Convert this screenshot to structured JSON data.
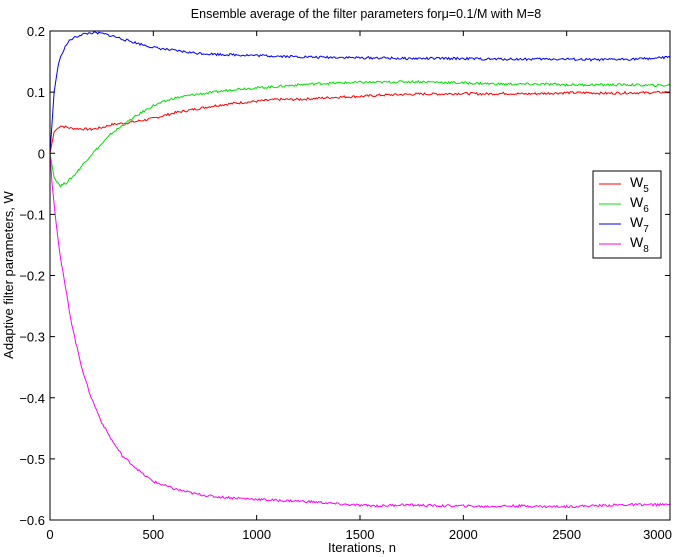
{
  "chart_data": {
    "type": "line",
    "title": "Ensemble average of the filter parameters forμ=0.1/M with M=8",
    "xlabel": "Iterations, n",
    "ylabel": "Adaptive filter parameters, W",
    "xlim": [
      0,
      3000
    ],
    "ylim": [
      -0.6,
      0.2
    ],
    "x_ticks": [
      0,
      500,
      1000,
      1500,
      2000,
      2500,
      3000
    ],
    "y_ticks": [
      0.2,
      0.1,
      0,
      -0.1,
      -0.2,
      -0.3,
      -0.4,
      -0.5,
      -0.6
    ],
    "x_tick_labels": [
      "0",
      "500",
      "1000",
      "1500",
      "2000",
      "2500",
      "3000"
    ],
    "y_tick_labels": [
      "0.2",
      "0.1",
      "0",
      "−0.1",
      "−0.2",
      "−0.3",
      "−0.4",
      "−0.5",
      "−0.6"
    ],
    "grid": false,
    "legend_position": "right",
    "legend_box": true,
    "series": [
      {
        "name": "W5",
        "legend_main": "W",
        "legend_sub": "5",
        "color": "#ff0000",
        "points": [
          [
            0,
            0
          ],
          [
            20,
            0.035
          ],
          [
            50,
            0.045
          ],
          [
            100,
            0.041
          ],
          [
            150,
            0.04
          ],
          [
            200,
            0.039
          ],
          [
            250,
            0.042
          ],
          [
            300,
            0.047
          ],
          [
            400,
            0.051
          ],
          [
            500,
            0.057
          ],
          [
            600,
            0.066
          ],
          [
            700,
            0.072
          ],
          [
            800,
            0.078
          ],
          [
            900,
            0.082
          ],
          [
            1000,
            0.085
          ],
          [
            1100,
            0.088
          ],
          [
            1200,
            0.088
          ],
          [
            1300,
            0.09
          ],
          [
            1400,
            0.092
          ],
          [
            1500,
            0.093
          ],
          [
            1600,
            0.095
          ],
          [
            1700,
            0.096
          ],
          [
            1800,
            0.097
          ],
          [
            1900,
            0.097
          ],
          [
            2000,
            0.098
          ],
          [
            2100,
            0.097
          ],
          [
            2200,
            0.098
          ],
          [
            2300,
            0.097
          ],
          [
            2400,
            0.098
          ],
          [
            2500,
            0.099
          ],
          [
            2600,
            0.099
          ],
          [
            2700,
            0.098
          ],
          [
            2800,
            0.099
          ],
          [
            2900,
            0.099
          ],
          [
            3000,
            0.1
          ]
        ]
      },
      {
        "name": "W6",
        "legend_main": "W",
        "legend_sub": "6",
        "color": "#00e000",
        "points": [
          [
            0,
            0
          ],
          [
            20,
            -0.04
          ],
          [
            50,
            -0.053
          ],
          [
            80,
            -0.048
          ],
          [
            120,
            -0.035
          ],
          [
            160,
            -0.018
          ],
          [
            200,
            -0.002
          ],
          [
            250,
            0.015
          ],
          [
            300,
            0.033
          ],
          [
            350,
            0.045
          ],
          [
            400,
            0.057
          ],
          [
            450,
            0.068
          ],
          [
            500,
            0.078
          ],
          [
            600,
            0.09
          ],
          [
            700,
            0.096
          ],
          [
            800,
            0.1
          ],
          [
            900,
            0.105
          ],
          [
            1000,
            0.107
          ],
          [
            1100,
            0.109
          ],
          [
            1200,
            0.112
          ],
          [
            1300,
            0.114
          ],
          [
            1400,
            0.115
          ],
          [
            1500,
            0.116
          ],
          [
            1600,
            0.116
          ],
          [
            1700,
            0.117
          ],
          [
            1800,
            0.117
          ],
          [
            1900,
            0.116
          ],
          [
            2000,
            0.115
          ],
          [
            2100,
            0.114
          ],
          [
            2200,
            0.113
          ],
          [
            2300,
            0.113
          ],
          [
            2400,
            0.113
          ],
          [
            2500,
            0.112
          ],
          [
            2600,
            0.112
          ],
          [
            2700,
            0.112
          ],
          [
            2800,
            0.112
          ],
          [
            2900,
            0.111
          ],
          [
            3000,
            0.111
          ]
        ]
      },
      {
        "name": "W7",
        "legend_main": "W",
        "legend_sub": "7",
        "color": "#0000ff",
        "points": [
          [
            0,
            0
          ],
          [
            20,
            0.1
          ],
          [
            40,
            0.145
          ],
          [
            60,
            0.165
          ],
          [
            80,
            0.178
          ],
          [
            100,
            0.186
          ],
          [
            150,
            0.194
          ],
          [
            200,
            0.197
          ],
          [
            250,
            0.196
          ],
          [
            300,
            0.192
          ],
          [
            400,
            0.182
          ],
          [
            500,
            0.173
          ],
          [
            600,
            0.168
          ],
          [
            700,
            0.164
          ],
          [
            800,
            0.162
          ],
          [
            900,
            0.161
          ],
          [
            1000,
            0.16
          ],
          [
            1100,
            0.159
          ],
          [
            1200,
            0.158
          ],
          [
            1300,
            0.157
          ],
          [
            1400,
            0.157
          ],
          [
            1500,
            0.156
          ],
          [
            1600,
            0.156
          ],
          [
            1700,
            0.155
          ],
          [
            1800,
            0.155
          ],
          [
            1900,
            0.155
          ],
          [
            2000,
            0.155
          ],
          [
            2100,
            0.154
          ],
          [
            2200,
            0.154
          ],
          [
            2300,
            0.154
          ],
          [
            2400,
            0.154
          ],
          [
            2500,
            0.154
          ],
          [
            2600,
            0.153
          ],
          [
            2700,
            0.153
          ],
          [
            2800,
            0.154
          ],
          [
            2900,
            0.155
          ],
          [
            3000,
            0.157
          ]
        ]
      },
      {
        "name": "W8",
        "legend_main": "W",
        "legend_sub": "8",
        "color": "#ff00ff",
        "points": [
          [
            0,
            0
          ],
          [
            10,
            -0.05
          ],
          [
            25,
            -0.1
          ],
          [
            50,
            -0.17
          ],
          [
            75,
            -0.22
          ],
          [
            100,
            -0.27
          ],
          [
            125,
            -0.31
          ],
          [
            150,
            -0.345
          ],
          [
            175,
            -0.375
          ],
          [
            200,
            -0.4
          ],
          [
            250,
            -0.44
          ],
          [
            300,
            -0.47
          ],
          [
            350,
            -0.495
          ],
          [
            400,
            -0.51
          ],
          [
            450,
            -0.525
          ],
          [
            500,
            -0.537
          ],
          [
            600,
            -0.549
          ],
          [
            700,
            -0.557
          ],
          [
            800,
            -0.562
          ],
          [
            900,
            -0.564
          ],
          [
            1000,
            -0.566
          ],
          [
            1100,
            -0.568
          ],
          [
            1200,
            -0.569
          ],
          [
            1300,
            -0.571
          ],
          [
            1400,
            -0.574
          ],
          [
            1500,
            -0.576
          ],
          [
            1600,
            -0.577
          ],
          [
            1700,
            -0.575
          ],
          [
            1800,
            -0.576
          ],
          [
            1900,
            -0.577
          ],
          [
            2000,
            -0.577
          ],
          [
            2100,
            -0.578
          ],
          [
            2200,
            -0.577
          ],
          [
            2300,
            -0.577
          ],
          [
            2400,
            -0.578
          ],
          [
            2500,
            -0.578
          ],
          [
            2600,
            -0.577
          ],
          [
            2700,
            -0.576
          ],
          [
            2800,
            -0.575
          ],
          [
            2900,
            -0.575
          ],
          [
            3000,
            -0.575
          ]
        ]
      }
    ]
  }
}
